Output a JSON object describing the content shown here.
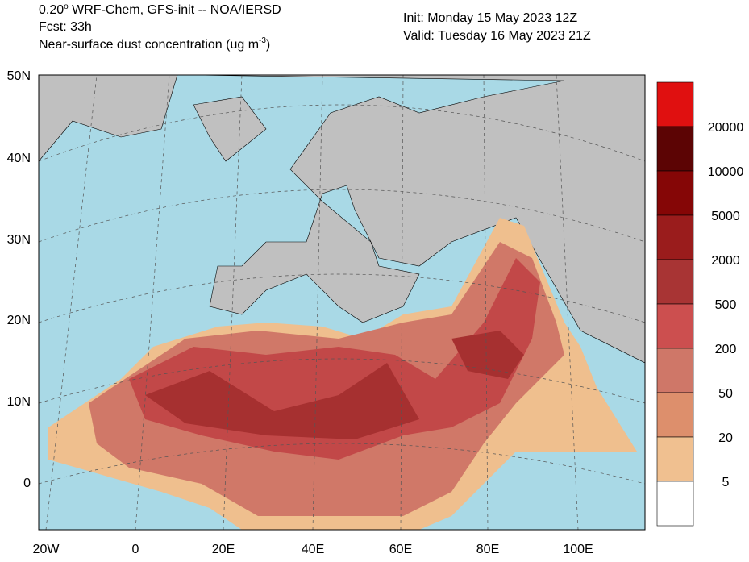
{
  "header": {
    "line1": {
      "text": "0.20",
      "superscript": "o",
      "suffix": " WRF-Chem, GFS-init -- NOA/IERSD"
    },
    "line2": "Fcst: 33h",
    "line3": {
      "text": "Near-surface dust concentration (ug m",
      "superscript": "-3",
      "suffix": ")"
    },
    "init": "Init: Monday 15 May 2023  12Z",
    "valid": "Valid: Tuesday 16 May 2023  21Z"
  },
  "map": {
    "lat_labels": [
      "50N",
      "40N",
      "30N",
      "20N",
      "10N",
      "0"
    ],
    "lon_labels": [
      "20W",
      "0",
      "20E",
      "40E",
      "60E",
      "80E",
      "100E"
    ]
  },
  "colorbar": {
    "labels": [
      "20000",
      "10000",
      "5000",
      "2000",
      "500",
      "200",
      "50",
      "20",
      "5"
    ],
    "colors": [
      "#e01010",
      "#5c0404",
      "#850606",
      "#9a1c1c",
      "#a83434",
      "#cc4f4f",
      "#cf7768",
      "#dd8f6c",
      "#f0c090",
      "#ffffff"
    ]
  }
}
